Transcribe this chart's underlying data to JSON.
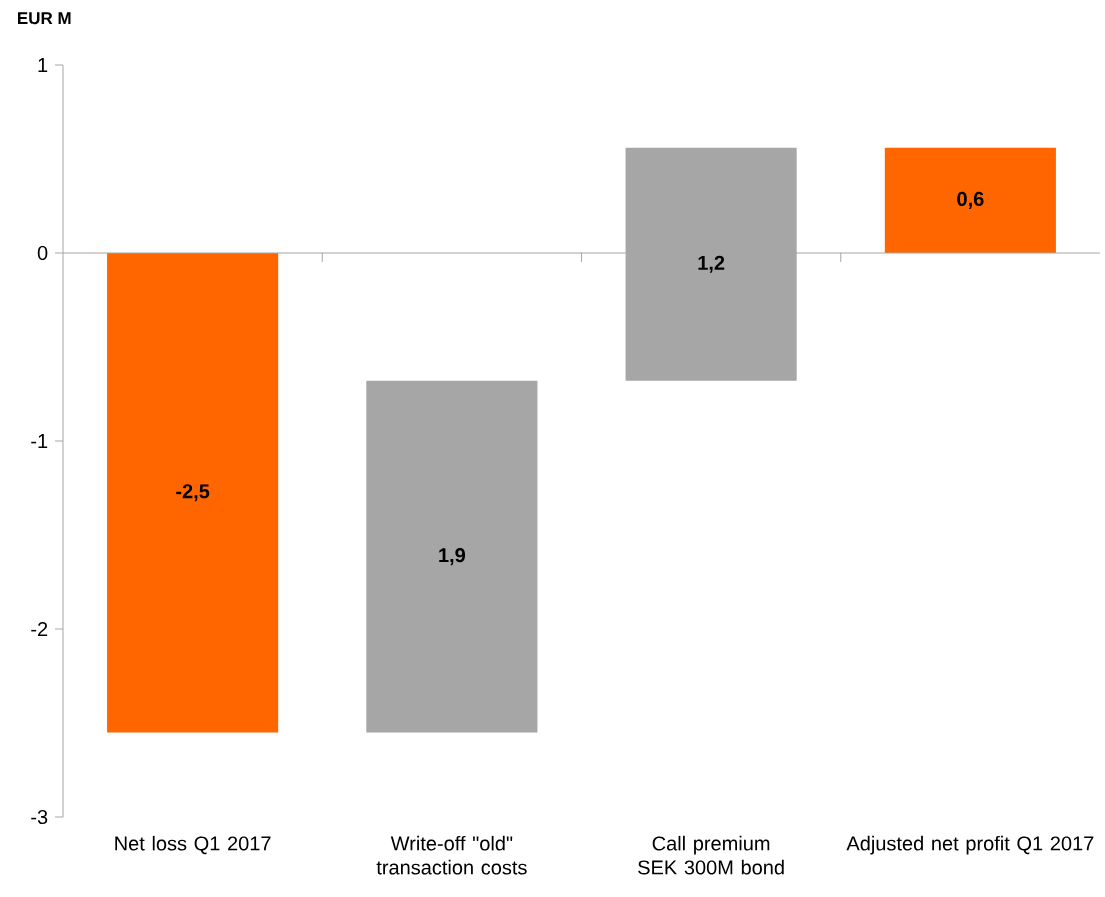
{
  "chart_data": {
    "type": "bar",
    "ylabel": "EUR M",
    "categories": [
      "Net loss Q1 2017",
      "Write-off \"old\" transaction costs",
      "Call premium SEK 300M bond",
      "Adjusted net profit Q1 2017"
    ],
    "values": [
      -2.55,
      1.87,
      1.24,
      0.56
    ],
    "base": [
      0,
      -2.55,
      -0.68,
      0
    ],
    "colors": [
      "#ff6600",
      "#a6a6a6",
      "#a6a6a6",
      "#ff6600"
    ],
    "value_labels": [
      "-2,5",
      "1,9",
      "1,2",
      "0,6"
    ],
    "ylim": [
      -3,
      1
    ],
    "yticks": [
      -3,
      -2,
      -1,
      0,
      1
    ]
  }
}
